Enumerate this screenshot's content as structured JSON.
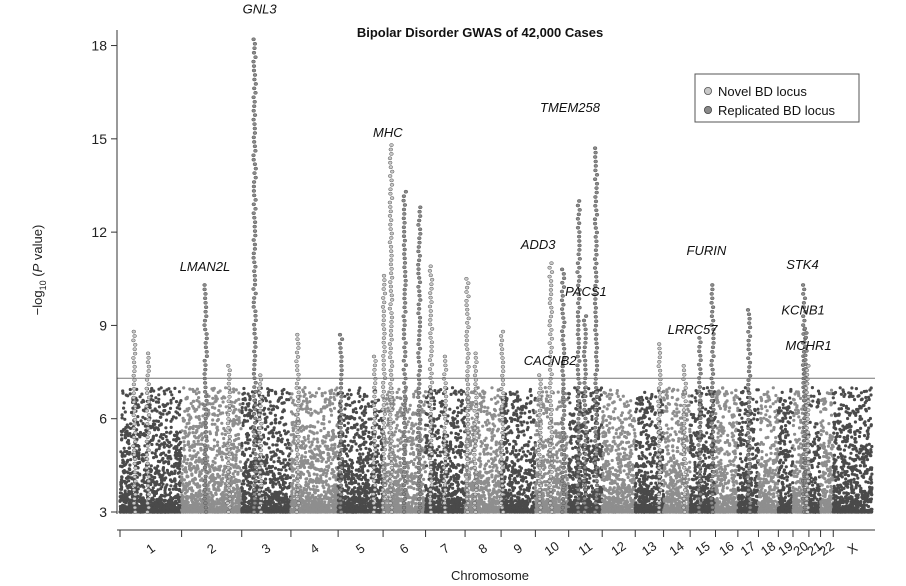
{
  "chart_data": {
    "type": "scatter",
    "title": "Bipolar Disorder GWAS of 42,000 Cases",
    "xlabel": "Chromosome",
    "ylabel": {
      "prefix": "−log",
      "sub": "10",
      "open": " (",
      "italic": "P",
      "close": " value)"
    },
    "ylim": [
      3,
      18.5
    ],
    "yticks": [
      3,
      6,
      9,
      12,
      15,
      18
    ],
    "threshold": 7.3,
    "grid": false,
    "legend_position": "top-right",
    "colors": {
      "novel": "#c8c8c8",
      "replicated": "#8a8a8a",
      "chrom_odd": "#4a4a4a",
      "chrom_even": "#8e8e8e",
      "threshold_line": "#777777"
    },
    "legend": [
      {
        "key": "novel",
        "label": "Novel BD locus"
      },
      {
        "key": "replicated",
        "label": "Replicated BD locus"
      }
    ],
    "chromosomes": [
      {
        "label": "1",
        "start": 0,
        "length": 248
      },
      {
        "label": "2",
        "start": 248,
        "length": 242
      },
      {
        "label": "3",
        "start": 490,
        "length": 198
      },
      {
        "label": "4",
        "start": 688,
        "length": 190
      },
      {
        "label": "5",
        "start": 878,
        "length": 181
      },
      {
        "label": "6",
        "start": 1059,
        "length": 171
      },
      {
        "label": "7",
        "start": 1230,
        "length": 159
      },
      {
        "label": "8",
        "start": 1389,
        "length": 145
      },
      {
        "label": "9",
        "start": 1534,
        "length": 138
      },
      {
        "label": "10",
        "start": 1672,
        "length": 134
      },
      {
        "label": "11",
        "start": 1806,
        "length": 135
      },
      {
        "label": "12",
        "start": 1941,
        "length": 133
      },
      {
        "label": "13",
        "start": 2074,
        "length": 114
      },
      {
        "label": "14",
        "start": 2188,
        "length": 107
      },
      {
        "label": "15",
        "start": 2295,
        "length": 102
      },
      {
        "label": "16",
        "start": 2397,
        "length": 90
      },
      {
        "label": "17",
        "start": 2487,
        "length": 83
      },
      {
        "label": "18",
        "start": 2570,
        "length": 80
      },
      {
        "label": "19",
        "start": 2650,
        "length": 59
      },
      {
        "label": "20",
        "start": 2709,
        "length": 64
      },
      {
        "label": "21",
        "start": 2773,
        "length": 47
      },
      {
        "label": "22",
        "start": 2820,
        "length": 51
      },
      {
        "label": "X",
        "start": 2871,
        "length": 156
      }
    ],
    "loci": [
      {
        "chrom": "1",
        "pos": 58,
        "peak": 8.8,
        "type": "novel"
      },
      {
        "chrom": "1",
        "pos": 112,
        "peak": 8.1,
        "type": "novel"
      },
      {
        "chrom": "2",
        "pos": 97,
        "peak": 10.3,
        "type": "replicated",
        "gene": "LMAN2L"
      },
      {
        "chrom": "2",
        "pos": 190,
        "peak": 7.7,
        "type": "novel"
      },
      {
        "chrom": "3",
        "pos": 52,
        "peak": 18.2,
        "type": "replicated",
        "gene": "GNL3"
      },
      {
        "chrom": "3",
        "pos": 75,
        "peak": 7.4,
        "type": "novel"
      },
      {
        "chrom": "4",
        "pos": 27,
        "peak": 8.7,
        "type": "novel"
      },
      {
        "chrom": "5",
        "pos": 11,
        "peak": 8.7,
        "type": "replicated"
      },
      {
        "chrom": "5",
        "pos": 146,
        "peak": 8.0,
        "type": "novel"
      },
      {
        "chrom": "6",
        "pos": 3,
        "peak": 10.6,
        "type": "novel"
      },
      {
        "chrom": "6",
        "pos": 32,
        "peak": 14.8,
        "type": "novel",
        "gene": "MHC"
      },
      {
        "chrom": "6",
        "pos": 87,
        "peak": 13.3,
        "type": "replicated"
      },
      {
        "chrom": "6",
        "pos": 146,
        "peak": 12.8,
        "type": "replicated"
      },
      {
        "chrom": "7",
        "pos": 22,
        "peak": 10.9,
        "type": "novel"
      },
      {
        "chrom": "7",
        "pos": 78,
        "peak": 8.0,
        "type": "novel"
      },
      {
        "chrom": "8",
        "pos": 10,
        "peak": 10.5,
        "type": "novel"
      },
      {
        "chrom": "8",
        "pos": 42,
        "peak": 8.1,
        "type": "novel"
      },
      {
        "chrom": "9",
        "pos": 5,
        "peak": 8.8,
        "type": "novel"
      },
      {
        "chrom": "10",
        "pos": 18,
        "peak": 7.4,
        "type": "novel",
        "gene": "CACNB2"
      },
      {
        "chrom": "10",
        "pos": 62,
        "peak": 11.0,
        "type": "novel",
        "gene": "ADD3"
      },
      {
        "chrom": "10",
        "pos": 112,
        "peak": 10.8,
        "type": "replicated"
      },
      {
        "chrom": "11",
        "pos": 40,
        "peak": 13.0,
        "type": "replicated"
      },
      {
        "chrom": "11",
        "pos": 66,
        "peak": 9.3,
        "type": "replicated",
        "gene": "PACS1"
      },
      {
        "chrom": "11",
        "pos": 110,
        "peak": 14.7,
        "type": "replicated",
        "gene": "TMEM258"
      },
      {
        "chrom": "13",
        "pos": 98,
        "peak": 8.4,
        "type": "novel"
      },
      {
        "chrom": "14",
        "pos": 85,
        "peak": 7.7,
        "type": "novel"
      },
      {
        "chrom": "15",
        "pos": 38,
        "peak": 8.6,
        "type": "replicated",
        "gene": "LRRC57"
      },
      {
        "chrom": "15",
        "pos": 90,
        "peak": 10.3,
        "type": "replicated",
        "gene": "FURIN"
      },
      {
        "chrom": "17",
        "pos": 45,
        "peak": 9.5,
        "type": "replicated"
      },
      {
        "chrom": "20",
        "pos": 45,
        "peak": 10.3,
        "type": "replicated",
        "gene": "STK4"
      },
      {
        "chrom": "20",
        "pos": 50,
        "peak": 8.9,
        "type": "replicated",
        "gene": "KCNB1"
      },
      {
        "chrom": "20",
        "pos": 58,
        "peak": 7.7,
        "type": "novel",
        "gene": "MCHR1"
      }
    ]
  }
}
